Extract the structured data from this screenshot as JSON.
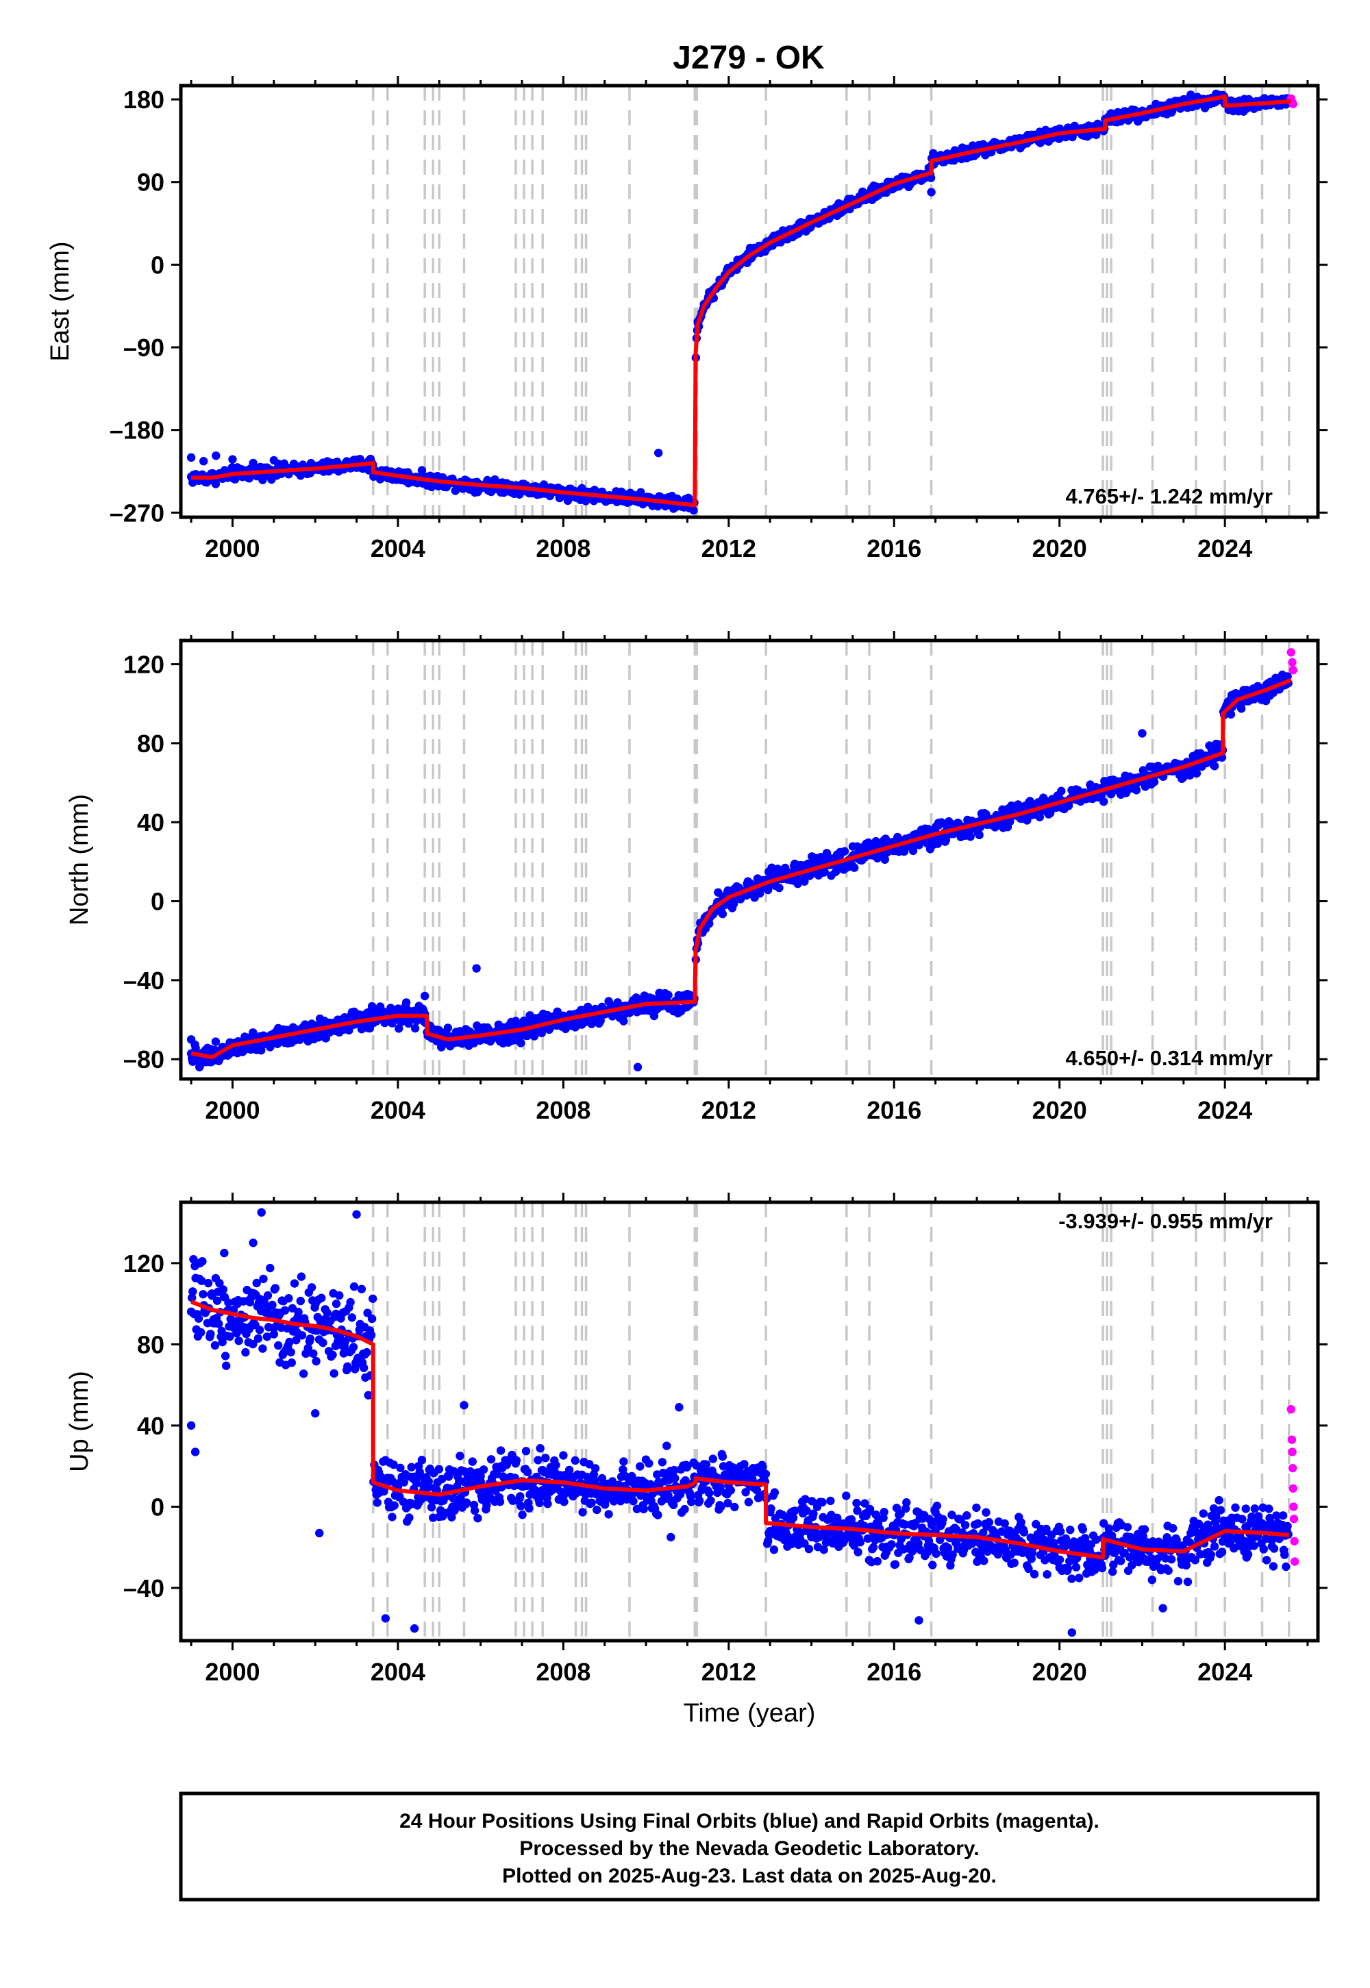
{
  "title": "J279 - OK",
  "caption": {
    "lines": [
      "24 Hour Positions Using Final Orbits (blue) and Rapid Orbits (magenta).",
      "Processed by the Nevada Geodetic Laboratory.",
      "Plotted on 2025-Aug-23. Last data on 2025-Aug-20."
    ]
  },
  "colors": {
    "final_orbits": "#0000ff",
    "rapid_orbits": "#ff00ff",
    "model": "#ff0000",
    "event_lines": "#c8c8c8",
    "frame": "#000000"
  },
  "event_lines": [
    2003.4,
    2003.75,
    2004.65,
    2004.85,
    2005.0,
    2005.6,
    2006.85,
    2007.05,
    2007.25,
    2007.5,
    2008.3,
    2008.45,
    2008.55,
    2009.6,
    2011.18,
    2011.23,
    2012.9,
    2014.85,
    2015.4,
    2016.9,
    2021.05,
    2021.15,
    2021.25,
    2022.25,
    2023.3,
    2024.0,
    2024.9,
    2025.55
  ],
  "chart_data": [
    {
      "type": "scatter",
      "panel": "east",
      "xlabel": "",
      "ylabel": "East (mm)",
      "xlim": [
        1998.75,
        2026.25
      ],
      "ylim": [
        -275,
        195
      ],
      "x_ticks": [
        2000,
        2004,
        2008,
        2012,
        2016,
        2020,
        2024
      ],
      "y_ticks": [
        -270,
        -180,
        -90,
        0,
        90,
        180
      ],
      "rate_text": "4.765+/- 1.242 mm/yr",
      "rate_position": "bottom-right",
      "model_segments": [
        {
          "x": [
            1999.0,
            1999.5,
            2000.0,
            2001.0,
            2002.0,
            2003.0,
            2003.4
          ],
          "y": [
            -232,
            -232,
            -228,
            -225,
            -222,
            -218,
            -216
          ]
        },
        {
          "x": [
            2003.4,
            2004.0,
            2005.0,
            2006.0,
            2007.0,
            2008.0,
            2009.0,
            2010.0,
            2011.18
          ],
          "y": [
            -226,
            -230,
            -236,
            -240,
            -243,
            -248,
            -252,
            -256,
            -262
          ]
        },
        {
          "x": [
            2011.2,
            2011.25,
            2011.4,
            2011.7,
            2012.0,
            2012.5,
            2013.0,
            2014.0,
            2015.0,
            2016.0,
            2016.9
          ],
          "y": [
            -97,
            -65,
            -45,
            -25,
            -8,
            10,
            24,
            46,
            67,
            88,
            100
          ]
        },
        {
          "x": [
            2016.9,
            2018.0,
            2019.0,
            2020.0,
            2021.1
          ],
          "y": [
            113,
            124,
            133,
            143,
            148
          ]
        },
        {
          "x": [
            2021.1,
            2022.0,
            2023.0,
            2024.0
          ],
          "y": [
            157,
            165,
            175,
            183
          ]
        },
        {
          "x": [
            2024.0,
            2025.0,
            2025.6
          ],
          "y": [
            173,
            176,
            178
          ]
        }
      ],
      "final_orbit_points": [
        [
          1999.0,
          -210
        ],
        [
          1999.3,
          -214
        ],
        [
          1999.6,
          -208
        ],
        [
          2000.0,
          -212
        ],
        [
          2000.5,
          -216
        ],
        [
          2001.0,
          -213
        ],
        [
          2001.5,
          -218
        ],
        [
          2002.0,
          -220
        ],
        [
          2002.5,
          -219
        ],
        [
          2003.0,
          -221
        ],
        [
          2003.3,
          -224
        ],
        [
          2003.6,
          -226
        ],
        [
          2004.0,
          -230
        ],
        [
          2004.5,
          -234
        ],
        [
          2005.0,
          -236
        ],
        [
          2005.5,
          -239
        ],
        [
          2006.0,
          -241
        ],
        [
          2006.5,
          -243
        ],
        [
          2007.0,
          -245
        ],
        [
          2007.5,
          -247
        ],
        [
          2008.0,
          -250
        ],
        [
          2008.5,
          -252
        ],
        [
          2009.0,
          -254
        ],
        [
          2009.5,
          -256
        ],
        [
          2010.0,
          -257
        ],
        [
          2010.3,
          -205
        ],
        [
          2010.5,
          -259
        ],
        [
          2011.0,
          -262
        ],
        [
          2011.25,
          -62
        ],
        [
          2011.5,
          -38
        ],
        [
          2011.8,
          -20
        ],
        [
          2012.0,
          -6
        ],
        [
          2012.5,
          12
        ],
        [
          2013.0,
          25
        ],
        [
          2013.5,
          36
        ],
        [
          2014.0,
          47
        ],
        [
          2014.5,
          58
        ],
        [
          2015.0,
          68
        ],
        [
          2015.5,
          78
        ],
        [
          2016.0,
          88
        ],
        [
          2016.5,
          95
        ],
        [
          2016.9,
          79
        ],
        [
          2017.0,
          112
        ],
        [
          2017.5,
          118
        ],
        [
          2018.0,
          124
        ],
        [
          2018.5,
          128
        ],
        [
          2019.0,
          133
        ],
        [
          2019.5,
          138
        ],
        [
          2020.0,
          143
        ],
        [
          2020.5,
          146
        ],
        [
          2021.0,
          150
        ],
        [
          2021.3,
          157
        ],
        [
          2022.0,
          164
        ],
        [
          2022.5,
          168
        ],
        [
          2023.0,
          174
        ],
        [
          2023.5,
          179
        ],
        [
          2023.9,
          184
        ],
        [
          2024.2,
          173
        ],
        [
          2024.6,
          175
        ],
        [
          2025.0,
          176
        ],
        [
          2025.4,
          177
        ]
      ],
      "rapid_orbit_points": [
        [
          2025.6,
          181
        ],
        [
          2025.63,
          177
        ],
        [
          2025.65,
          175
        ]
      ]
    },
    {
      "type": "scatter",
      "panel": "north",
      "xlabel": "",
      "ylabel": "North (mm)",
      "xlim": [
        1998.75,
        2026.25
      ],
      "ylim": [
        -90,
        132
      ],
      "x_ticks": [
        2000,
        2004,
        2008,
        2012,
        2016,
        2020,
        2024
      ],
      "y_ticks": [
        -80,
        -40,
        0,
        40,
        80,
        120
      ],
      "rate_text": "4.650+/- 0.314 mm/yr",
      "rate_position": "bottom-right",
      "model_segments": [
        {
          "x": [
            1999.0,
            1999.5,
            2000.0,
            2001.0,
            2002.0,
            2003.0,
            2004.0,
            2004.7
          ],
          "y": [
            -77,
            -79,
            -73,
            -69,
            -65,
            -61,
            -58,
            -58
          ]
        },
        {
          "x": [
            2004.7,
            2005.2,
            2006.0,
            2007.0,
            2008.0,
            2009.0,
            2010.0,
            2011.18
          ],
          "y": [
            -67,
            -70,
            -68,
            -65,
            -60,
            -56,
            -52,
            -51
          ]
        },
        {
          "x": [
            2011.2,
            2011.3,
            2011.6,
            2012.0,
            2013.0,
            2014.0,
            2015.0,
            2016.0,
            2017.0,
            2018.0,
            2019.0,
            2020.0,
            2021.0,
            2022.0,
            2023.0,
            2023.95
          ],
          "y": [
            -25,
            -14,
            -4,
            2,
            10,
            16,
            22,
            28,
            34,
            39,
            44,
            50,
            56,
            62,
            68,
            75
          ]
        },
        {
          "x": [
            2023.95,
            2024.3,
            2025.0,
            2025.6
          ],
          "y": [
            95,
            102,
            107,
            112
          ]
        }
      ],
      "final_orbit_points": [
        [
          1999.0,
          -70
        ],
        [
          1999.2,
          -84
        ],
        [
          1999.5,
          -76
        ],
        [
          2000.0,
          -72
        ],
        [
          2000.5,
          -70
        ],
        [
          2001.0,
          -67
        ],
        [
          2001.5,
          -65
        ],
        [
          2002.0,
          -63
        ],
        [
          2002.5,
          -62
        ],
        [
          2003.0,
          -60
        ],
        [
          2003.5,
          -58
        ],
        [
          2004.0,
          -57
        ],
        [
          2004.5,
          -56
        ],
        [
          2004.65,
          -48
        ],
        [
          2005.0,
          -70
        ],
        [
          2005.5,
          -68
        ],
        [
          2005.9,
          -34
        ],
        [
          2006.0,
          -67
        ],
        [
          2006.5,
          -66
        ],
        [
          2007.0,
          -64
        ],
        [
          2007.5,
          -62
        ],
        [
          2008.0,
          -58
        ],
        [
          2008.5,
          -56
        ],
        [
          2009.0,
          -55
        ],
        [
          2009.5,
          -53
        ],
        [
          2009.8,
          -84
        ],
        [
          2010.0,
          -52
        ],
        [
          2010.5,
          -50
        ],
        [
          2011.0,
          -47
        ],
        [
          2011.3,
          -15
        ],
        [
          2011.6,
          -4
        ],
        [
          2012.0,
          3
        ],
        [
          2012.5,
          7
        ],
        [
          2013.0,
          10
        ],
        [
          2013.5,
          14
        ],
        [
          2014.0,
          17
        ],
        [
          2014.5,
          20
        ],
        [
          2015.0,
          23
        ],
        [
          2015.5,
          27
        ],
        [
          2016.0,
          30
        ],
        [
          2016.5,
          32
        ],
        [
          2017.0,
          35
        ],
        [
          2017.5,
          37
        ],
        [
          2018.0,
          40
        ],
        [
          2018.5,
          42
        ],
        [
          2019.0,
          45
        ],
        [
          2019.5,
          47
        ],
        [
          2020.0,
          50
        ],
        [
          2020.5,
          53
        ],
        [
          2021.0,
          56
        ],
        [
          2021.5,
          59
        ],
        [
          2022.0,
          62
        ],
        [
          2022.0,
          85
        ],
        [
          2022.5,
          65
        ],
        [
          2023.0,
          68
        ],
        [
          2023.5,
          71
        ],
        [
          2023.9,
          74
        ],
        [
          2024.1,
          98
        ],
        [
          2024.4,
          102
        ],
        [
          2024.8,
          106
        ],
        [
          2025.2,
          108
        ],
        [
          2025.5,
          111
        ]
      ],
      "rapid_orbit_points": [
        [
          2025.6,
          126
        ],
        [
          2025.63,
          121
        ],
        [
          2025.65,
          117
        ]
      ]
    },
    {
      "type": "scatter",
      "panel": "up",
      "xlabel": "Time (year)",
      "ylabel": "Up (mm)",
      "xlim": [
        1998.75,
        2026.25
      ],
      "ylim": [
        -66,
        150
      ],
      "x_ticks": [
        2000,
        2004,
        2008,
        2012,
        2016,
        2020,
        2024
      ],
      "y_ticks": [
        -40,
        0,
        40,
        80,
        120
      ],
      "rate_text": "-3.939+/- 0.955 mm/yr",
      "rate_position": "top-right",
      "model_segments": [
        {
          "x": [
            1999.0,
            1999.5,
            2000.0,
            2000.5,
            2001.0,
            2001.5,
            2002.0,
            2002.5,
            2003.0,
            2003.4
          ],
          "y": [
            101,
            97,
            95,
            93,
            92,
            90,
            89,
            87,
            84,
            80
          ]
        },
        {
          "x": [
            2003.4,
            2004.0,
            2005.0,
            2006.0,
            2007.0,
            2008.0,
            2009.0,
            2010.0,
            2011.0,
            2011.2
          ],
          "y": [
            12,
            8,
            6,
            10,
            13,
            12,
            9,
            8,
            10,
            12
          ]
        },
        {
          "x": [
            2011.2,
            2012.0,
            2012.9
          ],
          "y": [
            14,
            12,
            11
          ]
        },
        {
          "x": [
            2012.9,
            2014.0,
            2015.0,
            2016.0,
            2017.0,
            2018.0,
            2019.0,
            2020.0,
            2021.05
          ],
          "y": [
            -8,
            -10,
            -11,
            -13,
            -14,
            -15,
            -18,
            -22,
            -25
          ]
        },
        {
          "x": [
            2021.05,
            2022.0,
            2023.0,
            2024.0,
            2025.0,
            2025.55
          ],
          "y": [
            -16,
            -21,
            -22,
            -12,
            -13,
            -14
          ]
        }
      ],
      "final_orbit_points": [
        [
          1999.0,
          40
        ],
        [
          1999.1,
          27
        ],
        [
          1999.2,
          120
        ],
        [
          1999.5,
          105
        ],
        [
          1999.8,
          125
        ],
        [
          2000.0,
          90
        ],
        [
          2000.5,
          130
        ],
        [
          2000.7,
          145
        ],
        [
          2001.0,
          85
        ],
        [
          2001.5,
          110
        ],
        [
          2002.0,
          46
        ],
        [
          2002.1,
          -13
        ],
        [
          2002.5,
          95
        ],
        [
          2003.0,
          144
        ],
        [
          2003.2,
          75
        ],
        [
          2003.5,
          2
        ],
        [
          2003.7,
          -55
        ],
        [
          2004.0,
          10
        ],
        [
          2004.4,
          -60
        ],
        [
          2004.5,
          20
        ],
        [
          2005.0,
          -5
        ],
        [
          2005.5,
          25
        ],
        [
          2005.6,
          50
        ],
        [
          2006.0,
          15
        ],
        [
          2006.5,
          20
        ],
        [
          2007.0,
          10
        ],
        [
          2007.5,
          18
        ],
        [
          2008.0,
          5
        ],
        [
          2008.5,
          22
        ],
        [
          2009.0,
          10
        ],
        [
          2009.5,
          15
        ],
        [
          2010.0,
          5
        ],
        [
          2010.5,
          30
        ],
        [
          2010.6,
          -15
        ],
        [
          2010.8,
          49
        ],
        [
          2011.0,
          20
        ],
        [
          2011.3,
          15
        ],
        [
          2011.7,
          10
        ],
        [
          2012.0,
          14
        ],
        [
          2012.5,
          12
        ],
        [
          2013.0,
          -12
        ],
        [
          2013.5,
          -8
        ],
        [
          2014.0,
          -15
        ],
        [
          2014.5,
          -10
        ],
        [
          2015.0,
          -13
        ],
        [
          2015.5,
          -20
        ],
        [
          2016.0,
          -14
        ],
        [
          2016.6,
          -56
        ],
        [
          2017.0,
          -12
        ],
        [
          2017.5,
          -18
        ],
        [
          2018.0,
          -16
        ],
        [
          2018.5,
          -20
        ],
        [
          2019.0,
          -22
        ],
        [
          2019.5,
          -18
        ],
        [
          2020.0,
          -30
        ],
        [
          2020.3,
          -62
        ],
        [
          2021.0,
          -25
        ],
        [
          2021.3,
          -20
        ],
        [
          2022.0,
          -25
        ],
        [
          2022.5,
          -50
        ],
        [
          2023.0,
          -22
        ],
        [
          2023.5,
          -18
        ],
        [
          2024.0,
          -15
        ],
        [
          2024.5,
          -10
        ],
        [
          2025.0,
          -12
        ],
        [
          2025.5,
          -12
        ]
      ],
      "rapid_orbit_points": [
        [
          2025.6,
          48
        ],
        [
          2025.62,
          33
        ],
        [
          2025.63,
          27
        ],
        [
          2025.64,
          19
        ],
        [
          2025.65,
          9
        ],
        [
          2025.66,
          0
        ],
        [
          2025.67,
          -6
        ],
        [
          2025.68,
          -17
        ],
        [
          2025.69,
          -27
        ]
      ]
    }
  ]
}
